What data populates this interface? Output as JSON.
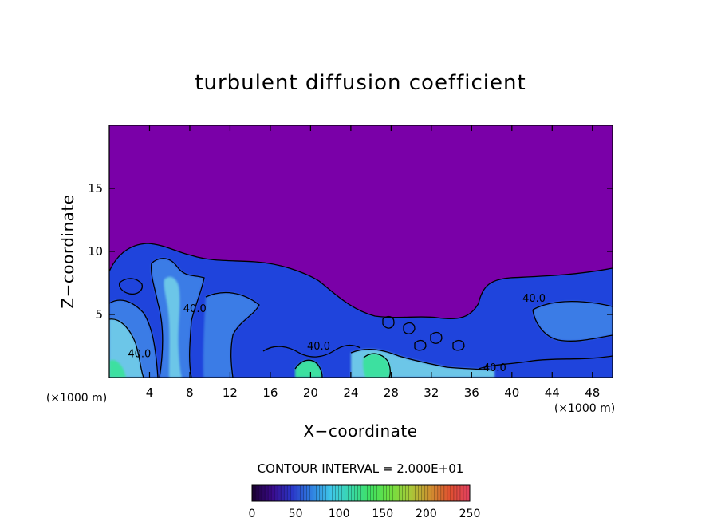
{
  "chart_data": {
    "type": "heatmap",
    "title": "turbulent diffusion coefficient",
    "xlabel": "X−coordinate",
    "ylabel": "Z−coordinate",
    "x_unit_left": "(×1000 m)",
    "x_unit_right": "(×1000 m)",
    "xlim": [
      0,
      50
    ],
    "ylim": [
      0,
      20
    ],
    "x_ticks": [
      4,
      8,
      12,
      16,
      20,
      24,
      28,
      32,
      36,
      40,
      44,
      48
    ],
    "y_ticks": [
      5,
      10,
      15
    ],
    "contour_labels": [
      {
        "text": "40.0",
        "x": 8.5,
        "y": 5.2
      },
      {
        "text": "40.0",
        "x": 3.0,
        "y": 1.6
      },
      {
        "text": "40.0",
        "x": 20.8,
        "y": 2.2
      },
      {
        "text": "40.0",
        "x": 42.2,
        "y": 6.0
      },
      {
        "text": "40.0",
        "x": 38.3,
        "y": 0.5
      }
    ],
    "contour_interval_text": "CONTOUR INTERVAL = 2.000E+01",
    "colorbar": {
      "min": 0,
      "max": 250,
      "tick_values": [
        0,
        50,
        100,
        150,
        200,
        250
      ],
      "tick_labels": [
        "0",
        "50",
        "100",
        "150",
        "200",
        "250"
      ],
      "colormap": [
        "#1a0030",
        "#3a0a8a",
        "#2a36c8",
        "#2f7fe0",
        "#3fc8e8",
        "#38d8a8",
        "#40e060",
        "#70e040",
        "#a8c838",
        "#d09030",
        "#e05030",
        "#e04060"
      ]
    },
    "background_value_color": "#7a00a8",
    "region_colors": {
      "upper": "#7a00a8",
      "boundary_layer": "#1f44dc",
      "plume": "#3a7ce6",
      "core": "#6cc6e8",
      "peak": "#3de0a0"
    }
  }
}
